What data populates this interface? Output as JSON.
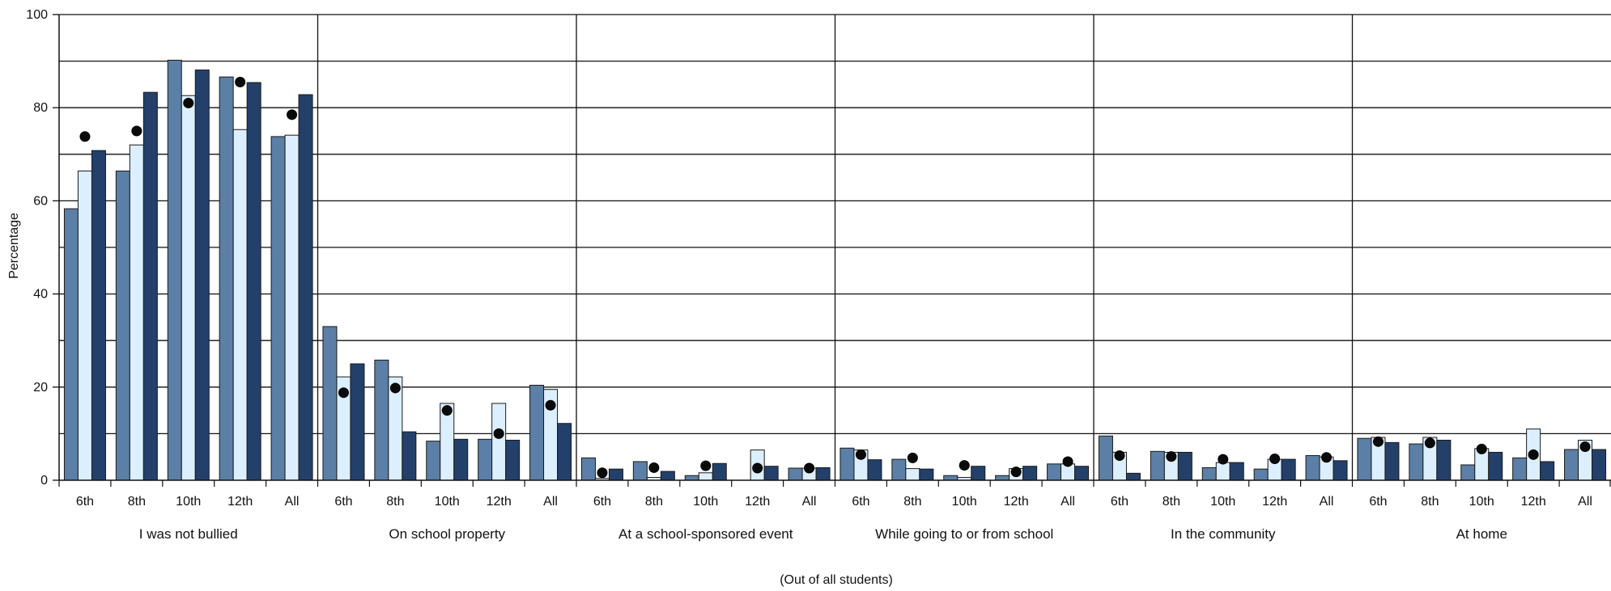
{
  "chart_data": {
    "type": "bar",
    "title": "",
    "xlabel": "(Out of all students)",
    "ylabel": "Percentage",
    "ylim": [
      0,
      100
    ],
    "yticks": [
      "0",
      "20",
      "40",
      "60",
      "80",
      "100"
    ],
    "grid": true,
    "bar_colors": [
      "#5b7fa6",
      "#dcefff",
      "#23406b"
    ],
    "marker_color": "#0a0a0a",
    "sub_categories": [
      "6th",
      "8th",
      "10th",
      "12th",
      "All"
    ],
    "groups": [
      {
        "label": "I was not bullied",
        "bars": [
          [
            58.3,
            66.4,
            70.8
          ],
          [
            66.4,
            72.0,
            83.3
          ],
          [
            90.2,
            82.6,
            88.1
          ],
          [
            86.6,
            75.3,
            85.4
          ],
          [
            73.8,
            74.1,
            82.8
          ]
        ],
        "markers": [
          73.8,
          75.0,
          81.0,
          85.5,
          78.5
        ]
      },
      {
        "label": "On school property",
        "bars": [
          [
            33.0,
            22.2,
            25.0
          ],
          [
            25.8,
            22.2,
            10.4
          ],
          [
            8.4,
            16.5,
            8.8
          ],
          [
            8.8,
            16.5,
            8.6
          ],
          [
            20.4,
            19.5,
            12.2
          ]
        ],
        "markers": [
          18.8,
          19.8,
          15.0,
          10.0,
          16.1
        ]
      },
      {
        "label": "At a school-sponsored event",
        "bars": [
          [
            4.8,
            0.4,
            2.4
          ],
          [
            4.0,
            0.6,
            1.9
          ],
          [
            1.0,
            1.6,
            3.6
          ],
          [
            0.0,
            6.5,
            3.0
          ],
          [
            2.6,
            2.6,
            2.7
          ]
        ],
        "markers": [
          1.6,
          2.7,
          3.1,
          2.6,
          2.6
        ]
      },
      {
        "label": "While going to or from school",
        "bars": [
          [
            6.9,
            6.5,
            4.4
          ],
          [
            4.5,
            2.5,
            2.4
          ],
          [
            1.0,
            0.6,
            3.0
          ],
          [
            1.0,
            2.5,
            3.0
          ],
          [
            3.5,
            3.5,
            3.0
          ]
        ],
        "markers": [
          5.5,
          4.8,
          3.2,
          1.8,
          4.0
        ]
      },
      {
        "label": "In the community",
        "bars": [
          [
            9.5,
            6.0,
            1.5
          ],
          [
            6.2,
            6.0,
            6.0
          ],
          [
            2.7,
            3.8,
            3.8
          ],
          [
            2.4,
            4.5,
            4.5
          ],
          [
            5.3,
            5.0,
            4.2
          ]
        ],
        "markers": [
          5.3,
          5.1,
          4.5,
          4.6,
          4.9
        ]
      },
      {
        "label": "At home",
        "bars": [
          [
            9.0,
            9.2,
            8.1
          ],
          [
            7.8,
            9.2,
            8.6
          ],
          [
            3.3,
            6.8,
            6.0
          ],
          [
            4.8,
            11.0,
            4.0
          ],
          [
            6.6,
            8.6,
            6.6
          ]
        ],
        "markers": [
          8.3,
          8.0,
          6.7,
          5.5,
          7.2
        ]
      }
    ]
  }
}
